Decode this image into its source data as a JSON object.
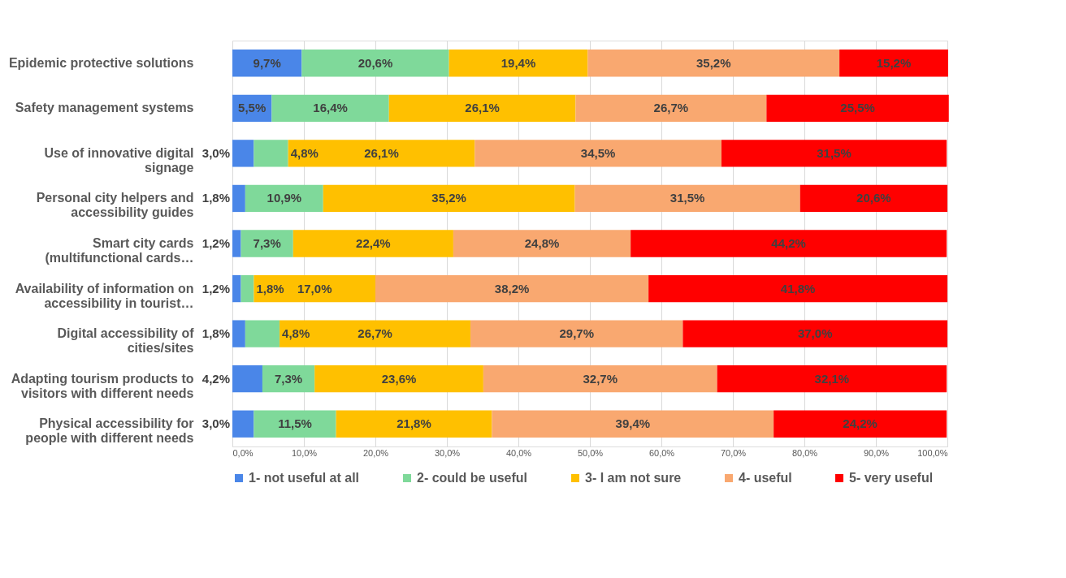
{
  "chart_data": {
    "type": "bar",
    "orientation": "horizontal",
    "stacked": true,
    "categories": [
      "Epidemic protective solutions",
      "Safety management systems",
      "Use of innovative digital\nsignage",
      "Personal city helpers and\naccessibility guides",
      "Smart city cards\n(multifunctional cards…",
      "Availability of information on\naccessibility in tourist…",
      "Digital accessibility of\ncities/sites",
      "Adapting tourism products to\nvisitors with different needs",
      "Physical accessibility for\npeople with different needs"
    ],
    "series": [
      {
        "name": "1- not useful at all",
        "color": "#4a86e8",
        "values": [
          9.7,
          5.5,
          3.0,
          1.8,
          1.2,
          1.2,
          1.8,
          4.2,
          3.0
        ],
        "value_labels": [
          "9,7%",
          "5,5%",
          "3,0%",
          "1,8%",
          "1,2%",
          "1,2%",
          "1,8%",
          "4,2%",
          "3,0%"
        ]
      },
      {
        "name": "2- could be useful",
        "color": "#7fd99a",
        "values": [
          20.6,
          16.4,
          4.8,
          10.9,
          7.3,
          1.8,
          4.8,
          7.3,
          11.5
        ],
        "value_labels": [
          "20,6%",
          "16,4%",
          "4,8%",
          "10,9%",
          "7,3%",
          "1,8%",
          "4,8%",
          "7,3%",
          "11,5%"
        ]
      },
      {
        "name": "3- I am not sure",
        "color": "#ffc000",
        "values": [
          19.4,
          26.1,
          26.1,
          35.2,
          22.4,
          17.0,
          26.7,
          23.6,
          21.8
        ],
        "value_labels": [
          "19,4%",
          "26,1%",
          "26,1%",
          "35,2%",
          "22,4%",
          "17,0%",
          "26,7%",
          "23,6%",
          "21,8%"
        ]
      },
      {
        "name": "4- useful",
        "color": "#f9a870",
        "values": [
          35.2,
          26.7,
          34.5,
          31.5,
          24.8,
          38.2,
          29.7,
          32.7,
          39.4
        ],
        "value_labels": [
          "35,2%",
          "26,7%",
          "34,5%",
          "31,5%",
          "24,8%",
          "38,2%",
          "29,7%",
          "32,7%",
          "39,4%"
        ]
      },
      {
        "name": "5- very useful",
        "color": "#ff0000",
        "values": [
          15.2,
          25.5,
          31.5,
          20.6,
          44.2,
          41.8,
          37.0,
          32.1,
          24.2
        ],
        "value_labels": [
          "15,2%",
          "25,5%",
          "31,5%",
          "20,6%",
          "44,2%",
          "41,8%",
          "37,0%",
          "32,1%",
          "24,2%"
        ]
      }
    ],
    "xlim": [
      0,
      100
    ],
    "xticks": [
      {
        "value": 0,
        "label": "0,0%"
      },
      {
        "value": 10,
        "label": "10,0%"
      },
      {
        "value": 20,
        "label": "20,0%"
      },
      {
        "value": 30,
        "label": "30,0%"
      },
      {
        "value": 40,
        "label": "40,0%"
      },
      {
        "value": 50,
        "label": "50,0%"
      },
      {
        "value": 60,
        "label": "60,0%"
      },
      {
        "value": 70,
        "label": "70,0%"
      },
      {
        "value": 80,
        "label": "80,0%"
      },
      {
        "value": 90,
        "label": "90,0%"
      },
      {
        "value": 100,
        "label": "100,0%"
      }
    ],
    "grid": "x",
    "legend": "bottom"
  }
}
